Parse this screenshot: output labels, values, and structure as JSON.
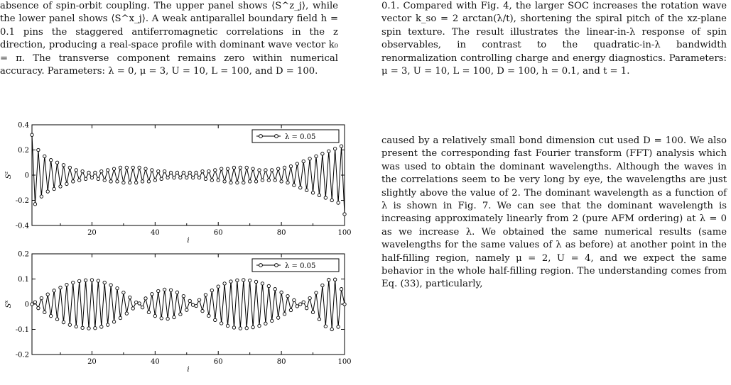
{
  "left_caption": {
    "text": "absence of spin-orbit coupling. The upper panel shows ⟨S^z_j⟩, while the lower panel shows ⟨S^x_j⟩. A weak antiparallel boundary field h = 0.1 pins the staggered antiferromagnetic correlations in the z direction, producing a real-space profile with dominant wave vector k₀ = π. The transverse component remains zero within numerical accuracy. Parameters: λ = 0, μ = 3, U = 10, L = 100, and D = 100."
  },
  "right_caption": {
    "text": "0.1. Compared with Fig. 4, the larger SOC increases the rotation wave vector k_so = 2 arctan(λ/t), shortening the spiral pitch of the xz-plane spin texture. The result illustrates the linear-in-λ response of spin observables, in contrast to the quadratic-in-λ bandwidth renormalization controlling charge and energy diagnostics. Parameters: μ = 3, U = 10, L = 100, D = 100, h = 0.1, and t = 1."
  },
  "body_text": "caused by a relatively small bond dimension cut used D = 100. We also present the corresponding fast Fourier transform (FFT) analysis which was used to obtain the dominant wavelengths. Although the waves in the correlations seem to be very long by eye, the wavelengths are just slightly above the value of 2. The dominant wavelength as a function of λ is shown in Fig. 7. We can see that the dominant wavelength is increasing approximately linearly from 2 (pure AFM ordering) at λ = 0 as we increase λ. We obtained the same numerical results (same wavelengths for the same values of λ as before) at another point in the half-filling region, namely μ = 2, U = 4, and we expect the same behavior in the whole half-filling region. The understanding comes from Eq. (33), particularly,",
  "chart_data": [
    {
      "type": "line",
      "ylabel": "S^z",
      "xlabel": "i",
      "legend": "λ = 0.05",
      "legend_position": "top-right",
      "xlim": [
        1,
        100
      ],
      "ylim": [
        -0.4,
        0.4
      ],
      "yticks": [
        "0.4",
        "0.2",
        "0",
        "-0.2",
        "-0.4"
      ],
      "xticks": [
        "20",
        "40",
        "60",
        "80",
        "100"
      ],
      "series": [
        {
          "x": [
            1,
            2,
            3,
            4,
            5,
            6,
            7,
            8,
            9,
            10,
            11,
            12,
            13,
            14,
            15,
            16,
            17,
            18,
            19,
            20,
            21,
            22,
            23,
            24,
            25,
            26,
            27,
            28,
            29,
            30,
            31,
            32,
            33,
            34,
            35,
            36,
            37,
            38,
            39,
            40,
            41,
            42,
            43,
            44,
            45,
            46,
            47,
            48,
            49,
            50,
            51,
            52,
            53,
            54,
            55,
            56,
            57,
            58,
            59,
            60,
            61,
            62,
            63,
            64,
            65,
            66,
            67,
            68,
            69,
            70,
            71,
            72,
            73,
            74,
            75,
            76,
            77,
            78,
            79,
            80,
            81,
            82,
            83,
            84,
            85,
            86,
            87,
            88,
            89,
            90,
            91,
            92,
            93,
            94,
            95,
            96,
            97,
            98,
            99,
            100
          ],
          "y": [
            0.32,
            -0.23,
            0.2,
            -0.17,
            0.15,
            -0.13,
            0.12,
            -0.11,
            0.1,
            -0.09,
            0.08,
            -0.07,
            0.06,
            -0.05,
            0.04,
            -0.04,
            0.03,
            -0.03,
            0.02,
            -0.02,
            0.02,
            -0.03,
            0.03,
            -0.04,
            0.04,
            -0.05,
            0.05,
            -0.05,
            0.06,
            -0.06,
            0.06,
            -0.06,
            0.06,
            -0.06,
            0.06,
            -0.05,
            0.05,
            -0.05,
            0.04,
            -0.04,
            0.03,
            -0.03,
            0.03,
            -0.02,
            0.02,
            -0.02,
            0.02,
            -0.02,
            0.02,
            -0.02,
            0.02,
            -0.02,
            0.02,
            -0.02,
            0.03,
            -0.03,
            0.03,
            -0.04,
            0.04,
            -0.04,
            0.05,
            -0.05,
            0.05,
            -0.06,
            0.06,
            -0.06,
            0.06,
            -0.06,
            0.06,
            -0.05,
            0.05,
            -0.05,
            0.04,
            -0.04,
            0.04,
            -0.04,
            0.04,
            -0.04,
            0.05,
            -0.05,
            0.06,
            -0.06,
            0.07,
            -0.08,
            0.09,
            -0.1,
            0.11,
            -0.12,
            0.13,
            -0.14,
            0.15,
            -0.16,
            0.17,
            -0.18,
            0.19,
            -0.2,
            0.21,
            -0.22,
            0.23,
            -0.31
          ]
        }
      ]
    },
    {
      "type": "line",
      "ylabel": "S^x",
      "xlabel": "i",
      "legend": "λ = 0.05",
      "legend_position": "top-right",
      "xlim": [
        1,
        100
      ],
      "ylim": [
        -0.2,
        0.2
      ],
      "yticks": [
        "0.2",
        "0.1",
        "0",
        "-0.1",
        "-0.2"
      ],
      "xticks": [
        "20",
        "40",
        "60",
        "80",
        "100"
      ],
      "series": [
        {
          "x": [
            1,
            2,
            3,
            4,
            5,
            6,
            7,
            8,
            9,
            10,
            11,
            12,
            13,
            14,
            15,
            16,
            17,
            18,
            19,
            20,
            21,
            22,
            23,
            24,
            25,
            26,
            27,
            28,
            29,
            30,
            31,
            32,
            33,
            34,
            35,
            36,
            37,
            38,
            39,
            40,
            41,
            42,
            43,
            44,
            45,
            46,
            47,
            48,
            49,
            50,
            51,
            52,
            53,
            54,
            55,
            56,
            57,
            58,
            59,
            60,
            61,
            62,
            63,
            64,
            65,
            66,
            67,
            68,
            69,
            70,
            71,
            72,
            73,
            74,
            75,
            76,
            77,
            78,
            79,
            80,
            81,
            82,
            83,
            84,
            85,
            86,
            87,
            88,
            89,
            90,
            91,
            92,
            93,
            94,
            95,
            96,
            97,
            98,
            99,
            100
          ],
          "y": [
            0.0,
            0.008,
            -0.016,
            0.024,
            -0.032,
            0.039,
            -0.047,
            0.054,
            -0.06,
            0.066,
            -0.072,
            0.077,
            -0.082,
            0.086,
            -0.089,
            0.092,
            -0.094,
            0.095,
            -0.096,
            0.096,
            -0.095,
            0.093,
            -0.09,
            0.086,
            -0.082,
            0.076,
            -0.07,
            0.063,
            -0.055,
            0.046,
            -0.037,
            0.027,
            -0.017,
            0.007,
            0.003,
            -0.013,
            0.023,
            -0.032,
            0.04,
            -0.047,
            0.052,
            -0.056,
            0.058,
            -0.058,
            0.056,
            -0.052,
            0.047,
            -0.04,
            0.032,
            -0.023,
            0.013,
            -0.003,
            -0.007,
            0.017,
            -0.027,
            0.037,
            -0.046,
            0.055,
            -0.063,
            0.07,
            -0.076,
            0.082,
            -0.086,
            0.09,
            -0.093,
            0.095,
            -0.096,
            0.096,
            -0.095,
            0.094,
            -0.092,
            0.089,
            -0.086,
            0.082,
            -0.077,
            0.072,
            -0.066,
            0.06,
            -0.054,
            0.047,
            -0.039,
            0.032,
            -0.024,
            0.016,
            -0.008,
            0.0,
            0.008,
            -0.016,
            0.024,
            -0.032,
            0.045,
            -0.06,
            0.075,
            -0.088,
            0.097,
            -0.1,
            0.098,
            -0.09,
            0.06,
            0.0
          ]
        }
      ]
    }
  ]
}
